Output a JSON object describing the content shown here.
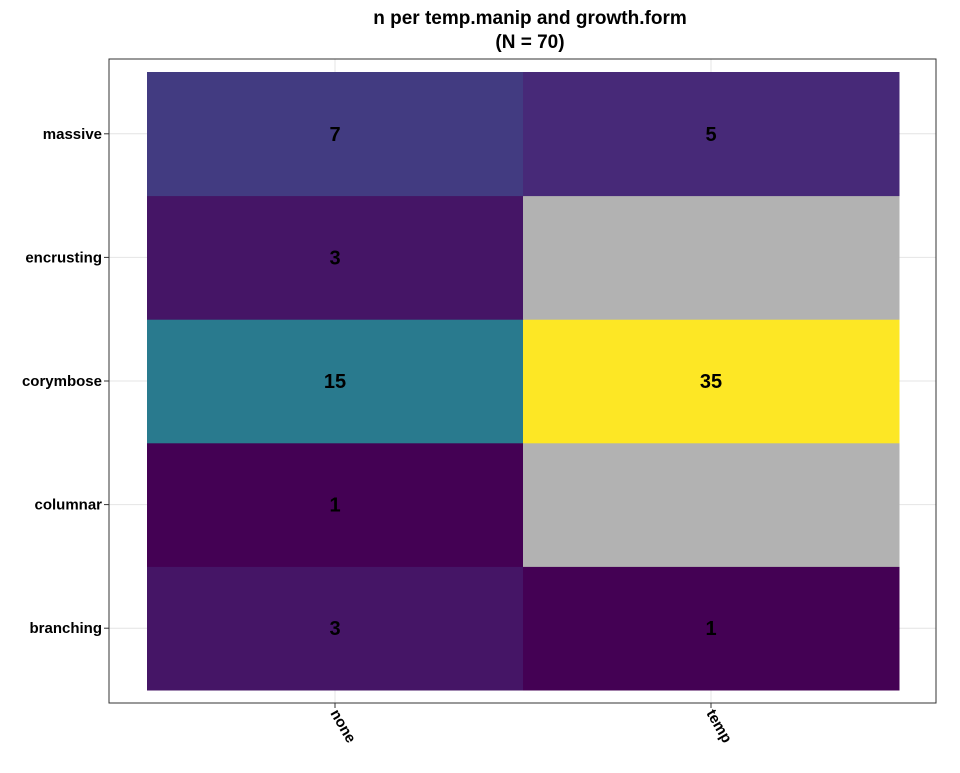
{
  "chart_data": {
    "type": "heatmap",
    "title": "n per temp.manip and growth.form",
    "subtitle": "(N = 70)",
    "xlabel": "",
    "ylabel": "",
    "x_categories": [
      "none",
      "temp"
    ],
    "y_categories": [
      "branching",
      "columnar",
      "corymbose",
      "encrusting",
      "massive"
    ],
    "values": [
      [
        3,
        1
      ],
      [
        1,
        null
      ],
      [
        15,
        35
      ],
      [
        3,
        null
      ],
      [
        7,
        5
      ]
    ],
    "missing_label": "",
    "color_scale": "viridis",
    "value_range": [
      1,
      35
    ],
    "missing_color": "#b2b2b2",
    "grid": true,
    "legend": "none"
  }
}
